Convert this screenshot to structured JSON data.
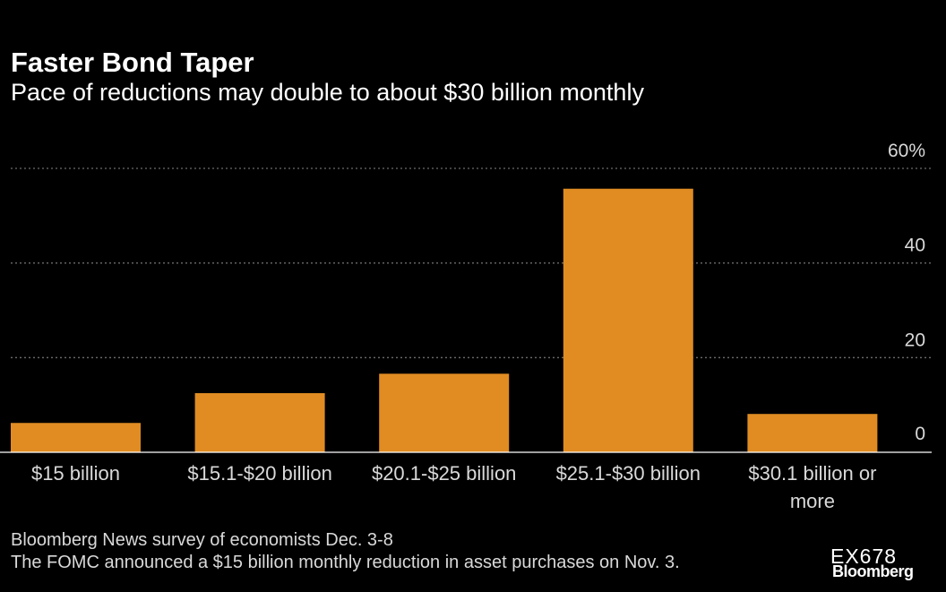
{
  "chart_data": {
    "type": "bar",
    "title": "Faster Bond Taper",
    "subtitle": "Pace of reductions may double to about $30 billion monthly",
    "categories": [
      "$15 billion",
      "$15.1-$20 billion",
      "$20.1-$25 billion",
      "$25.1-$30 billion",
      "$30.1 billion or more"
    ],
    "category_lines": [
      [
        "$15 billion"
      ],
      [
        "$15.1-$20 billion"
      ],
      [
        "$20.1-$25 billion"
      ],
      [
        "$25.1-$30 billion"
      ],
      [
        "$30.1 billion or",
        "more"
      ]
    ],
    "values": [
      6.2,
      12.5,
      16.6,
      55.7,
      8.1
    ],
    "ylim": [
      0,
      60
    ],
    "yticks": [
      0,
      20,
      40,
      60
    ],
    "ytick_labels": [
      "0",
      "20",
      "40",
      "60%"
    ],
    "yaxis_side": "right",
    "grid": true,
    "xlabel": "",
    "ylabel": "",
    "bar_color": "#e08c22"
  },
  "footnotes": {
    "line1": "Bloomberg News survey of economists Dec. 3-8",
    "line2": "The FOMC announced a $15 billion monthly reduction in asset purchases on Nov. 3."
  },
  "graphic_code": "EX678",
  "brand": "Bloomberg",
  "colors": {
    "background": "#000000",
    "bar": "#e08c22",
    "grid": "#6b6b6b",
    "text": "#ffffff",
    "muted_text": "#d9d9d9"
  }
}
